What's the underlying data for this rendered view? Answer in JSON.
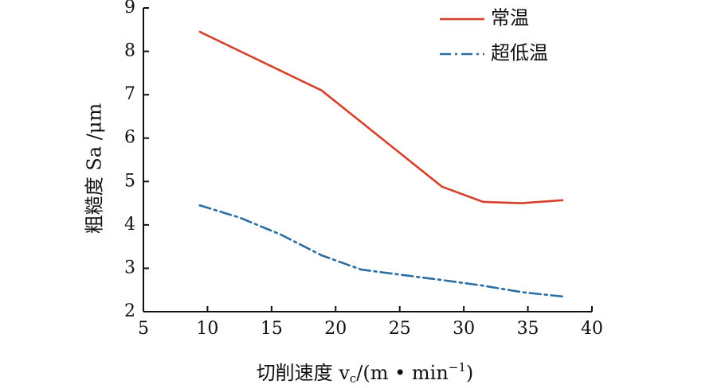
{
  "chart_data": {
    "type": "line",
    "x_range": [
      5,
      40
    ],
    "y_range": [
      2,
      9
    ],
    "x_ticks": [
      5,
      10,
      15,
      20,
      25,
      30,
      35,
      40
    ],
    "y_ticks": [
      2,
      3,
      4,
      5,
      6,
      7,
      8,
      9
    ],
    "xlabel": "切削速度 v",
    "xlabel_sub": "c",
    "xlabel_unit_prefix": "/(m • min",
    "xlabel_unit_exp": "−1",
    "xlabel_unit_suffix": ")",
    "ylabel": "粗糙度 Sa /μm",
    "legend_position": "top-right",
    "series": [
      {
        "name": "常温",
        "color": "#d6402b",
        "style": "solid",
        "x": [
          9.4,
          18.9,
          28.3,
          31.5,
          34.5,
          37.7
        ],
        "y": [
          8.45,
          7.1,
          4.88,
          4.53,
          4.5,
          4.57
        ]
      },
      {
        "name": "超低温",
        "color": "#2b6ea3",
        "style": "dashdot",
        "x": [
          9.4,
          12.5,
          15.7,
          18.9,
          22.0,
          25.1,
          28.3,
          31.5,
          34.5,
          37.7
        ],
        "y": [
          4.45,
          4.17,
          3.78,
          3.3,
          2.97,
          2.85,
          2.73,
          2.6,
          2.45,
          2.35
        ]
      }
    ]
  }
}
